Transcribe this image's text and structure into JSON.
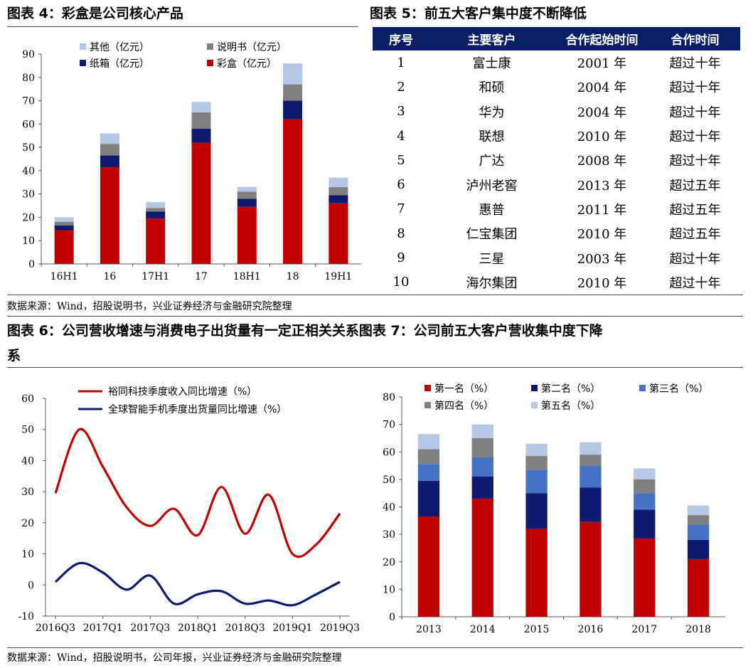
{
  "fig4": {
    "title": "图表 4：彩盒是公司核心产品",
    "chart_data": {
      "type": "bar",
      "stacked": true,
      "categories": [
        "16H1",
        "16",
        "17H1",
        "17",
        "18H1",
        "18",
        "19H1"
      ],
      "series": [
        {
          "name": "彩盒（亿元）",
          "color": "#c00000",
          "values": [
            14.5,
            41.5,
            19.5,
            52,
            24.5,
            62,
            26
          ]
        },
        {
          "name": "纸箱（亿元）",
          "color": "#0d1a6e",
          "values": [
            2,
            5,
            3,
            6,
            3.5,
            8,
            3.5
          ]
        },
        {
          "name": "说明书（亿元）",
          "color": "#7f7f7f",
          "values": [
            1.5,
            5,
            1.5,
            7,
            3,
            7,
            3.5
          ]
        },
        {
          "name": "其他（亿元）",
          "color": "#b4c7e7",
          "values": [
            2,
            4.5,
            2.5,
            4.5,
            2,
            9,
            4
          ]
        }
      ],
      "ylim": [
        0,
        90
      ],
      "yticks": [
        0,
        10,
        20,
        30,
        40,
        50,
        60,
        70,
        80,
        90
      ],
      "legend_position": "top"
    }
  },
  "fig5": {
    "title": "图表 5：前五大客户集中度不断降低",
    "headers": [
      "序号",
      "主要客户",
      "合作起始时间",
      "合作时间"
    ],
    "rows": [
      [
        "1",
        "富士康",
        "2001 年",
        "超过十年"
      ],
      [
        "2",
        "和硕",
        "2004 年",
        "超过十年"
      ],
      [
        "3",
        "华为",
        "2004 年",
        "超过十年"
      ],
      [
        "4",
        "联想",
        "2010 年",
        "超过十年"
      ],
      [
        "5",
        "广达",
        "2008 年",
        "超过十年"
      ],
      [
        "6",
        "泸州老窖",
        "2013 年",
        "超过五年"
      ],
      [
        "7",
        "惠普",
        "2011 年",
        "超过五年"
      ],
      [
        "8",
        "仁宝集团",
        "2010 年",
        "超过五年"
      ],
      [
        "9",
        "三星",
        "2003 年",
        "超过十年"
      ],
      [
        "10",
        "海尔集团",
        "2010 年",
        "超过十年"
      ]
    ],
    "header_color": "#0b1f66"
  },
  "source_top": "数据来源：Wind，招股说明书，兴业证券经济与金融研究院整理",
  "titles_row2": {
    "line1": "图表 6：公司营收增速与消费电子出货量有一定正相关关系图表 7：公司前五大客户营收集中度下降",
    "line2": "系"
  },
  "fig6": {
    "chart_data": {
      "type": "line",
      "x": [
        "2016Q3",
        "2016Q4",
        "2017Q1",
        "2017Q2",
        "2017Q3",
        "2017Q4",
        "2018Q1",
        "2018Q2",
        "2018Q3",
        "2018Q4",
        "2019Q1",
        "2019Q2",
        "2019Q3"
      ],
      "xtick_labels": [
        "2016Q3",
        "2017Q1",
        "2017Q3",
        "2018Q1",
        "2018Q3",
        "2019Q1",
        "2019Q3"
      ],
      "series": [
        {
          "name": "裕同科技季度收入同比增速（%）",
          "color": "#c00000",
          "values": [
            29.5,
            50,
            38,
            25,
            19,
            24.5,
            16,
            31.5,
            16.5,
            29,
            10,
            13,
            23
          ]
        },
        {
          "name": "全球智能手机季度出货量同比增速（%）",
          "color": "#0d1a6e",
          "values": [
            1,
            7,
            4,
            -1.5,
            3,
            -6,
            -3,
            -2,
            -6,
            -5,
            -6.5,
            -3,
            1
          ]
        }
      ],
      "ylim": [
        -10,
        60
      ],
      "yticks": [
        -10,
        0,
        10,
        20,
        30,
        40,
        50,
        60
      ],
      "legend_position": "top"
    }
  },
  "fig7": {
    "chart_data": {
      "type": "bar",
      "stacked": true,
      "categories": [
        "2013",
        "2014",
        "2015",
        "2016",
        "2017",
        "2018"
      ],
      "series": [
        {
          "name": "第一名（%）",
          "color": "#c00000",
          "values": [
            36.5,
            43,
            32,
            34.5,
            28.5,
            21
          ]
        },
        {
          "name": "第二名（%）",
          "color": "#0d1a6e",
          "values": [
            13,
            8,
            13,
            12.5,
            10.5,
            7
          ]
        },
        {
          "name": "第三名（%）",
          "color": "#4472c4",
          "values": [
            6,
            7,
            8.5,
            8,
            6,
            5.5
          ]
        },
        {
          "name": "第四名（%）",
          "color": "#7f7f7f",
          "values": [
            5.5,
            7,
            5,
            4,
            5,
            3.5
          ]
        },
        {
          "name": "第五名（%）",
          "color": "#b4c7e7",
          "values": [
            5.5,
            5,
            4.5,
            4.5,
            4,
            3.5
          ]
        }
      ],
      "ylim": [
        0,
        80
      ],
      "yticks": [
        0,
        10,
        20,
        30,
        40,
        50,
        60,
        70,
        80
      ],
      "legend_position": "top"
    }
  },
  "source_bottom": "数据来源：Wind，招股说明书，公司年报，兴业证券经济与金融研究院整理"
}
